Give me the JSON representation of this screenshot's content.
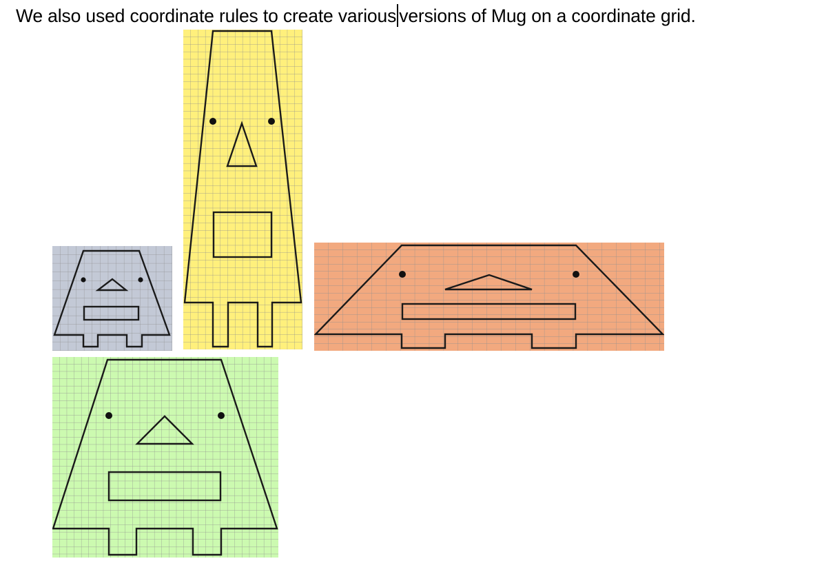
{
  "text": {
    "before_caret": "We also used coordinate rules to create various",
    "after_caret": "versions of Mug on a coordinate grid."
  },
  "figures": [
    {
      "name": "mug-blue",
      "color": "#c3c9d6"
    },
    {
      "name": "mug-yellow",
      "color": "#fff07c"
    },
    {
      "name": "mug-orange",
      "color": "#f2a97f"
    },
    {
      "name": "mug-green",
      "color": "#ccfab0"
    }
  ]
}
